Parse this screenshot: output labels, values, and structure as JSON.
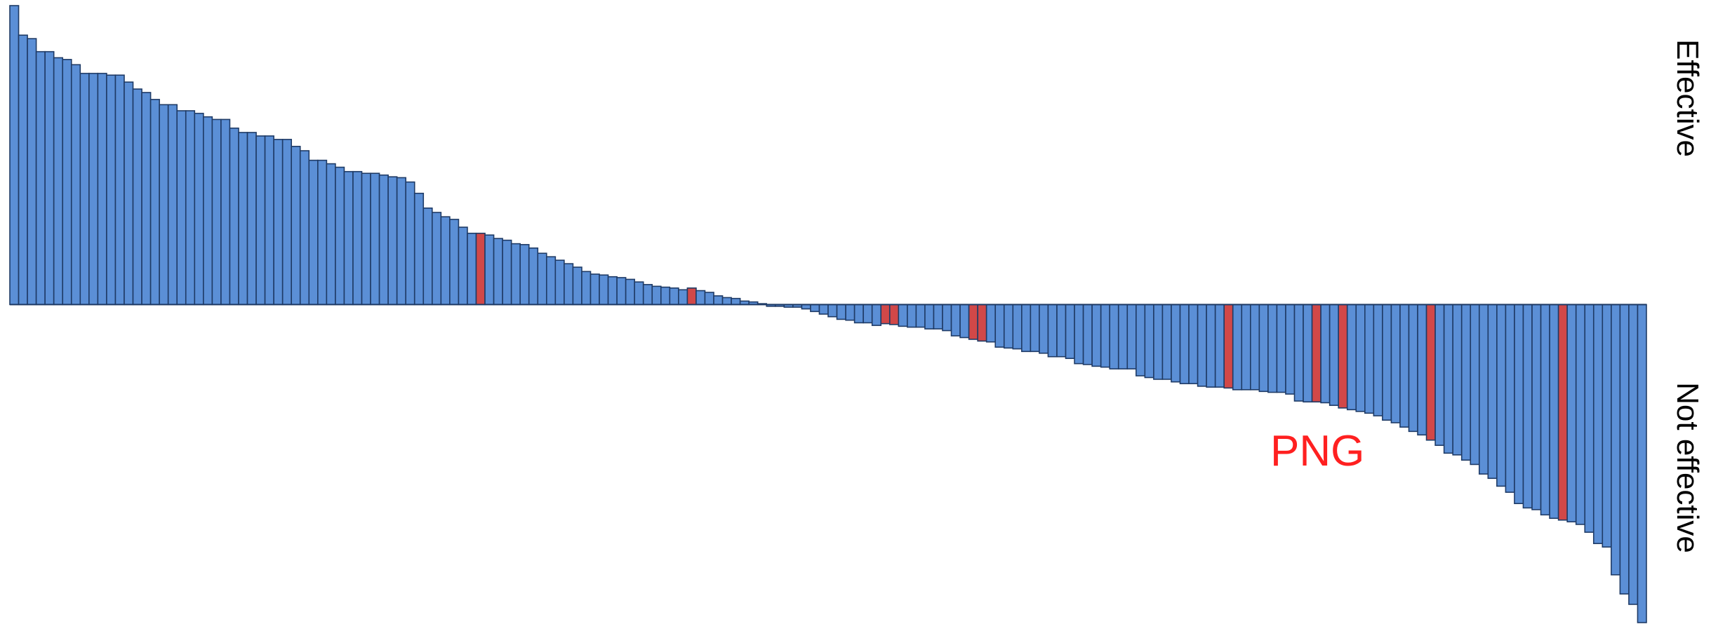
{
  "chart_data": {
    "type": "bar",
    "title": "",
    "xlabel": "",
    "ylabel": "",
    "side_labels": {
      "top": "Effective",
      "bottom": "Not effective"
    },
    "annotation": "PNG",
    "colors": {
      "default": "#5b8fd6",
      "highlight": "#d14848",
      "outline": "#1f3b66"
    },
    "highlight_indices": [
      53,
      77,
      99,
      100,
      109,
      110,
      138,
      148,
      151,
      161,
      176
    ],
    "ylim": [
      -36.6,
      34.4
    ],
    "values": [
      34.4,
      31.0,
      30.6,
      29.1,
      29.1,
      28.4,
      28.2,
      27.6,
      26.6,
      26.6,
      26.6,
      26.4,
      26.4,
      25.6,
      24.8,
      24.4,
      23.6,
      23.0,
      23.0,
      22.3,
      22.3,
      22.0,
      21.6,
      21.3,
      21.3,
      20.3,
      19.8,
      19.8,
      19.4,
      19.4,
      19.0,
      19.0,
      18.2,
      17.7,
      16.6,
      16.6,
      16.2,
      15.8,
      15.3,
      15.3,
      15.1,
      15.1,
      14.9,
      14.7,
      14.6,
      14.1,
      12.8,
      11.1,
      10.6,
      10.1,
      9.8,
      8.9,
      8.2,
      8.2,
      8.0,
      7.6,
      7.4,
      7.0,
      6.9,
      6.5,
      5.9,
      5.5,
      5.1,
      4.7,
      4.3,
      3.8,
      3.5,
      3.4,
      3.2,
      3.1,
      2.9,
      2.6,
      2.3,
      2.1,
      2.0,
      1.9,
      1.7,
      1.9,
      1.6,
      1.4,
      1.0,
      0.8,
      0.7,
      0.4,
      0.3,
      0.1,
      -0.2,
      -0.2,
      -0.3,
      -0.3,
      -0.5,
      -0.8,
      -1.1,
      -1.4,
      -1.7,
      -1.8,
      -2.1,
      -2.1,
      -2.4,
      -2.2,
      -2.3,
      -2.5,
      -2.6,
      -2.6,
      -2.8,
      -2.8,
      -3.0,
      -3.6,
      -3.8,
      -4.0,
      -4.2,
      -4.3,
      -4.9,
      -5.0,
      -5.1,
      -5.4,
      -5.4,
      -5.6,
      -6.0,
      -6.0,
      -6.2,
      -6.8,
      -6.9,
      -7.1,
      -7.2,
      -7.4,
      -7.4,
      -7.4,
      -8.2,
      -8.4,
      -8.6,
      -8.6,
      -8.9,
      -9.1,
      -9.1,
      -9.4,
      -9.5,
      -9.5,
      -9.6,
      -9.8,
      -9.8,
      -9.8,
      -10.0,
      -10.1,
      -10.1,
      -10.3,
      -11.1,
      -11.2,
      -11.2,
      -11.3,
      -11.6,
      -11.9,
      -12.1,
      -12.3,
      -12.5,
      -12.8,
      -13.3,
      -13.6,
      -14.1,
      -14.6,
      -15.0,
      -15.6,
      -16.2,
      -17.1,
      -17.3,
      -17.9,
      -18.4,
      -19.5,
      -20.0,
      -20.9,
      -21.6,
      -22.9,
      -23.4,
      -23.6,
      -24.2,
      -24.6,
      -24.8,
      -25.0,
      -25.3,
      -26.2,
      -27.5,
      -27.9,
      -31.1,
      -33.3,
      -34.5,
      -36.6
    ]
  }
}
